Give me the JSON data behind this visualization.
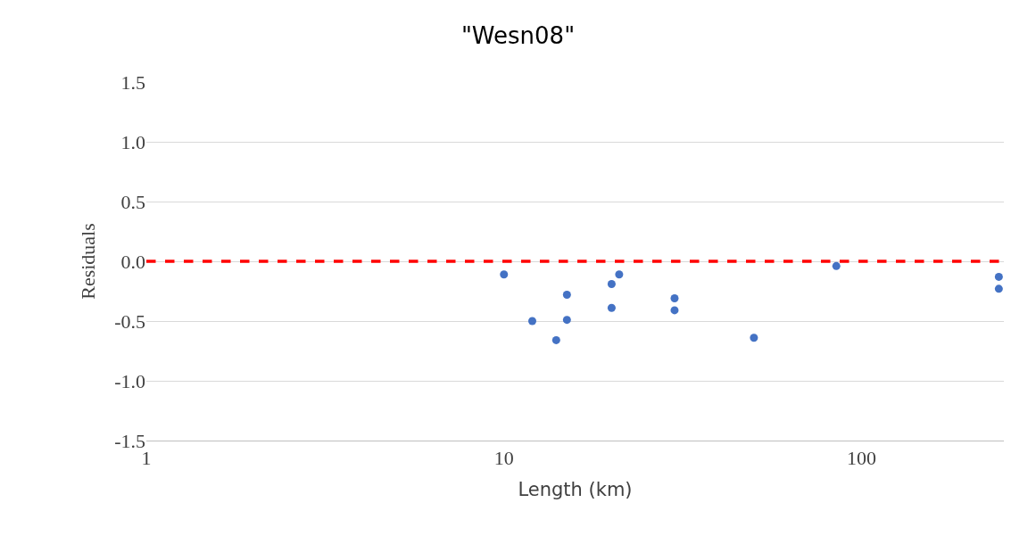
{
  "chart_data": {
    "type": "scatter",
    "title": "\"Wesn08\"",
    "xlabel": "Length (km)",
    "ylabel": "Residuals",
    "log": "x",
    "xlim": [
      1,
      250
    ],
    "xticks": [
      1,
      10,
      100
    ],
    "ylim": [
      -1.5,
      1.5
    ],
    "yticks": [
      {
        "value": -1.5,
        "label": "-1.5"
      },
      {
        "value": -1.0,
        "label": "-1.0"
      },
      {
        "value": -0.5,
        "label": "-0.5"
      },
      {
        "value": 0,
        "label": "0.0"
      },
      {
        "value": 0.5,
        "label": "0.5"
      },
      {
        "value": 1.0,
        "label": "1.0"
      },
      {
        "value": 1.5,
        "label": "1.5"
      }
    ],
    "grid": "y",
    "marker": "circle",
    "series": [
      {
        "color": "#4472c4",
        "x": [
          10,
          12,
          14,
          15,
          15,
          20,
          20,
          21,
          30,
          30,
          50,
          85,
          242,
          242
        ],
        "values": [
          -0.11,
          -0.5,
          -0.66,
          -0.28,
          -0.49,
          -0.19,
          -0.39,
          -0.11,
          -0.31,
          -0.41,
          -0.64,
          -0.04,
          -0.13,
          -0.23
        ]
      }
    ],
    "ref_lines": [
      {
        "axis": "y",
        "value": 0,
        "color": "#ff0000",
        "line_style": "dashed"
      }
    ]
  }
}
